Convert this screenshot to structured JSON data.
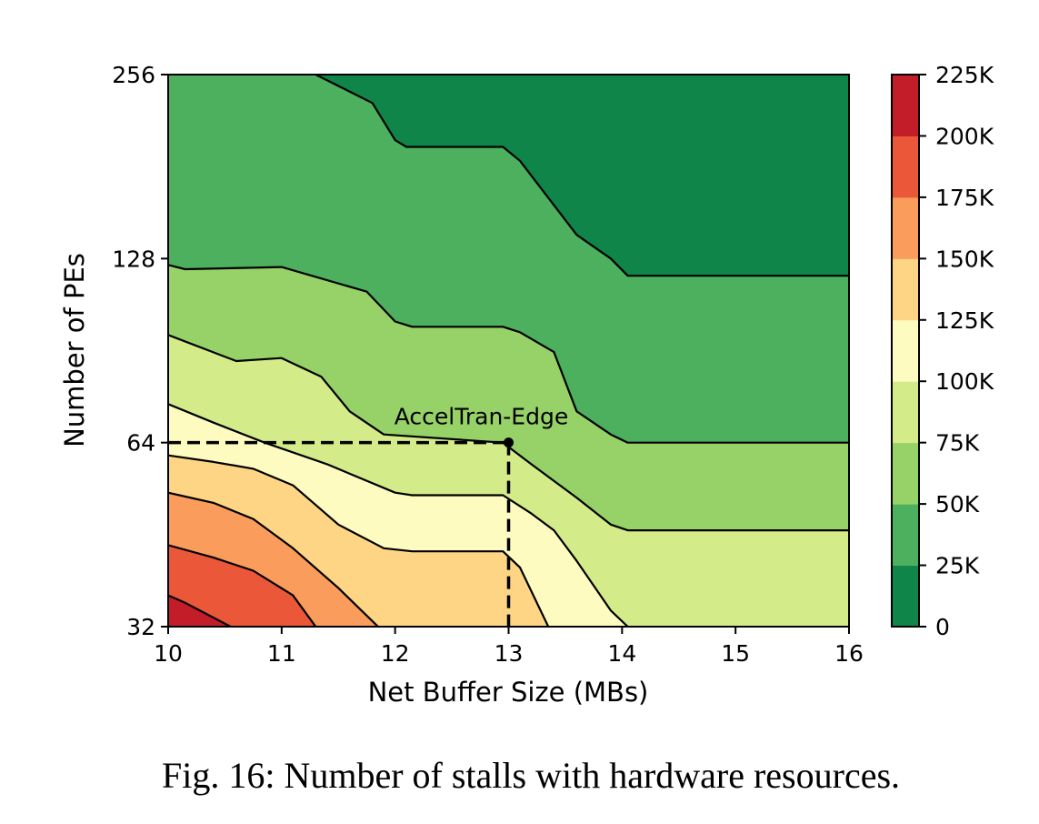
{
  "chart_data": {
    "type": "contour",
    "xlabel": "Net Buffer Size (MBs)",
    "ylabel": "Number of PEs",
    "x_ticks": [
      10,
      11,
      12,
      13,
      14,
      15,
      16
    ],
    "x_tick_labels": [
      "10",
      "11",
      "12",
      "13",
      "14",
      "15",
      "16"
    ],
    "y_ticks": [
      32,
      64,
      128,
      256
    ],
    "y_tick_labels": [
      "32",
      "64",
      "128",
      "256"
    ],
    "y_scale": "log2",
    "xlim": [
      10,
      16
    ],
    "ylim": [
      32,
      256
    ],
    "colorbar": {
      "levels": [
        0,
        25000,
        50000,
        75000,
        100000,
        125000,
        150000,
        175000,
        200000,
        225000
      ],
      "tick_labels": [
        "0",
        "25K",
        "50K",
        "75K",
        "100K",
        "125K",
        "150K",
        "175K",
        "200K",
        "225K"
      ],
      "colors": [
        "#10854a",
        "#4cb05f",
        "#97d268",
        "#d4eb8a",
        "#fefbc1",
        "#fdd584",
        "#f99c5c",
        "#ea5839",
        "#c31d2a"
      ],
      "colormap": "RdYlGn_r"
    },
    "contour_lines": [
      {
        "level": 25000,
        "points": [
          [
            11.3,
            256
          ],
          [
            11.8,
            230
          ],
          [
            12.0,
            200
          ],
          [
            12.1,
            195
          ],
          [
            12.95,
            195
          ],
          [
            13.1,
            185
          ],
          [
            13.6,
            140
          ],
          [
            13.9,
            128
          ],
          [
            14.05,
            120
          ],
          [
            16,
            120
          ]
        ]
      },
      {
        "level": 50000,
        "points": [
          [
            10,
            125
          ],
          [
            10.15,
            123
          ],
          [
            11,
            124
          ],
          [
            11.75,
            113
          ],
          [
            12.0,
            101
          ],
          [
            12.15,
            99
          ],
          [
            12.95,
            99
          ],
          [
            13.1,
            97
          ],
          [
            13.4,
            90
          ],
          [
            13.6,
            72
          ],
          [
            13.9,
            66
          ],
          [
            14.05,
            64
          ],
          [
            16,
            64
          ]
        ]
      },
      {
        "level": 75000,
        "points": [
          [
            10,
            96
          ],
          [
            10.6,
            87
          ],
          [
            11.0,
            88
          ],
          [
            11.35,
            82
          ],
          [
            11.6,
            72
          ],
          [
            11.9,
            66
          ],
          [
            12.95,
            64
          ],
          [
            13.2,
            59
          ],
          [
            13.6,
            52
          ],
          [
            13.9,
            47
          ],
          [
            14.05,
            46
          ],
          [
            16,
            46
          ]
        ]
      },
      {
        "level": 100000,
        "points": [
          [
            10,
            74
          ],
          [
            10.4,
            69
          ],
          [
            10.85,
            64
          ],
          [
            11.4,
            59
          ],
          [
            12.0,
            53
          ],
          [
            12.15,
            52.5
          ],
          [
            12.95,
            52.5
          ],
          [
            13.2,
            49
          ],
          [
            13.4,
            46
          ],
          [
            13.6,
            41
          ],
          [
            13.9,
            34
          ],
          [
            14.05,
            32
          ]
        ]
      },
      {
        "level": 125000,
        "points": [
          [
            10,
            61
          ],
          [
            10.4,
            59.5
          ],
          [
            10.75,
            58
          ],
          [
            11.1,
            54.5
          ],
          [
            11.5,
            47
          ],
          [
            11.9,
            43
          ],
          [
            12.15,
            42.5
          ],
          [
            12.95,
            42.5
          ],
          [
            13.1,
            40
          ],
          [
            13.35,
            32
          ]
        ]
      },
      {
        "level": 150000,
        "points": [
          [
            10,
            53
          ],
          [
            10.4,
            51
          ],
          [
            10.75,
            48
          ],
          [
            11.1,
            43
          ],
          [
            11.5,
            37
          ],
          [
            11.85,
            32
          ]
        ]
      },
      {
        "level": 175000,
        "points": [
          [
            10,
            43.5
          ],
          [
            10.4,
            41.5
          ],
          [
            10.75,
            39.5
          ],
          [
            11.1,
            36
          ],
          [
            11.3,
            32
          ]
        ]
      },
      {
        "level": 200000,
        "points": [
          [
            10,
            36
          ],
          [
            10.15,
            35
          ],
          [
            10.55,
            32
          ]
        ]
      }
    ],
    "reference": {
      "label": "AccelTran-Edge",
      "x": 13,
      "y": 64
    }
  },
  "caption": "Fig. 16: Number of stalls with hardware resources."
}
